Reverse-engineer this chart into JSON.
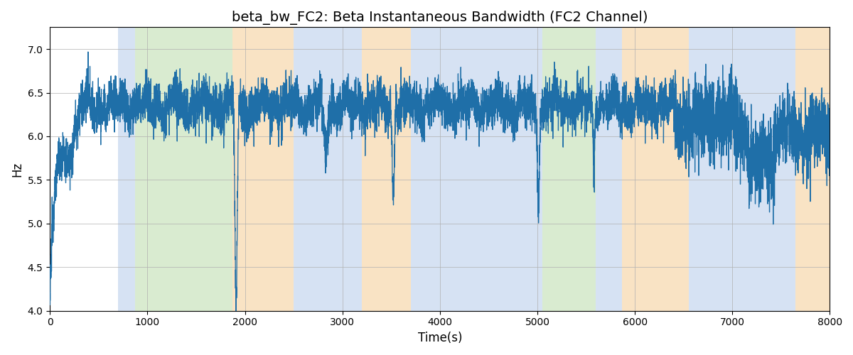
{
  "title": "beta_bw_FC2: Beta Instantaneous Bandwidth (FC2 Channel)",
  "xlabel": "Time(s)",
  "ylabel": "Hz",
  "xlim": [
    0,
    8000
  ],
  "ylim": [
    4.0,
    7.25
  ],
  "yticks": [
    4.0,
    4.5,
    5.0,
    5.5,
    6.0,
    6.5,
    7.0
  ],
  "xticks": [
    0,
    1000,
    2000,
    3000,
    4000,
    5000,
    6000,
    7000,
    8000
  ],
  "line_color": "#1f6fa8",
  "line_width": 0.9,
  "bg_color": "#ffffff",
  "grid_color": "#b0b0b0",
  "bands": [
    {
      "xmin": 700,
      "xmax": 870,
      "color": "#aec6e8",
      "alpha": 0.5
    },
    {
      "xmin": 870,
      "xmax": 1870,
      "color": "#b5d9a3",
      "alpha": 0.5
    },
    {
      "xmin": 1870,
      "xmax": 2500,
      "color": "#f5c98a",
      "alpha": 0.5
    },
    {
      "xmin": 2500,
      "xmax": 3200,
      "color": "#aec6e8",
      "alpha": 0.5
    },
    {
      "xmin": 3200,
      "xmax": 3700,
      "color": "#f5c98a",
      "alpha": 0.5
    },
    {
      "xmin": 3700,
      "xmax": 4900,
      "color": "#aec6e8",
      "alpha": 0.5
    },
    {
      "xmin": 4900,
      "xmax": 5050,
      "color": "#aec6e8",
      "alpha": 0.5
    },
    {
      "xmin": 5050,
      "xmax": 5600,
      "color": "#b5d9a3",
      "alpha": 0.5
    },
    {
      "xmin": 5600,
      "xmax": 5870,
      "color": "#aec6e8",
      "alpha": 0.5
    },
    {
      "xmin": 5870,
      "xmax": 6550,
      "color": "#f5c98a",
      "alpha": 0.5
    },
    {
      "xmin": 6550,
      "xmax": 7150,
      "color": "#aec6e8",
      "alpha": 0.5
    },
    {
      "xmin": 7150,
      "xmax": 7650,
      "color": "#aec6e8",
      "alpha": 0.5
    },
    {
      "xmin": 7650,
      "xmax": 8000,
      "color": "#f5c98a",
      "alpha": 0.5
    }
  ],
  "title_fontsize": 14
}
